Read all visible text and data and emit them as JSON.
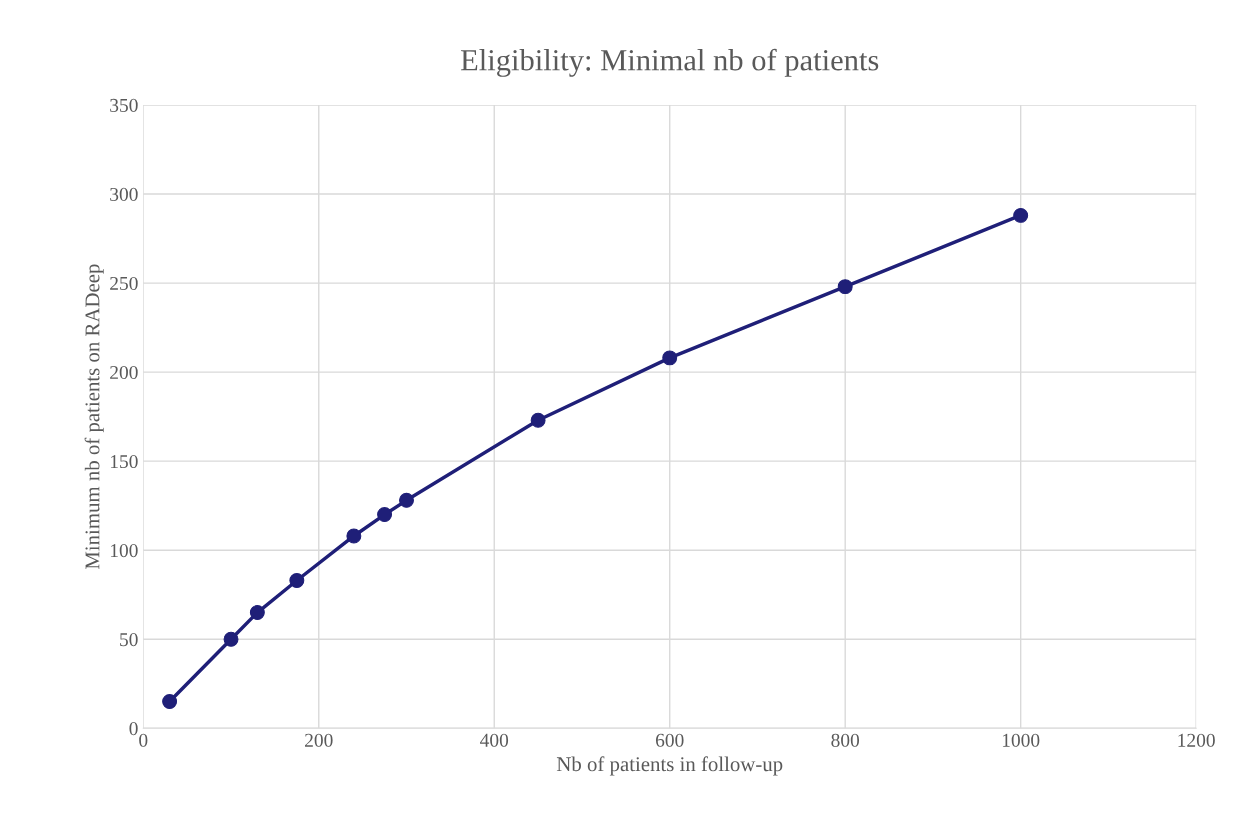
{
  "chart_data": {
    "type": "line",
    "title": "Eligibility: Minimal nb of patients",
    "xlabel": "Nb of patients in follow-up",
    "ylabel": "Minimum nb of patients on RADeep",
    "x": [
      30,
      100,
      130,
      175,
      240,
      275,
      300,
      450,
      600,
      800,
      1000
    ],
    "series": [
      {
        "color": "#1f1f78",
        "values": [
          15,
          50,
          65,
          83,
          108,
          120,
          128,
          173,
          208,
          248,
          288
        ]
      }
    ],
    "xlim": [
      0,
      1200
    ],
    "xticks": [
      0,
      200,
      400,
      600,
      800,
      1000,
      1200
    ],
    "ylim": [
      0,
      350
    ],
    "yticks": [
      0,
      50,
      100,
      150,
      200,
      250,
      300,
      350
    ],
    "grid": true,
    "marker": "circle",
    "line_style": "solid",
    "legend": false
  }
}
